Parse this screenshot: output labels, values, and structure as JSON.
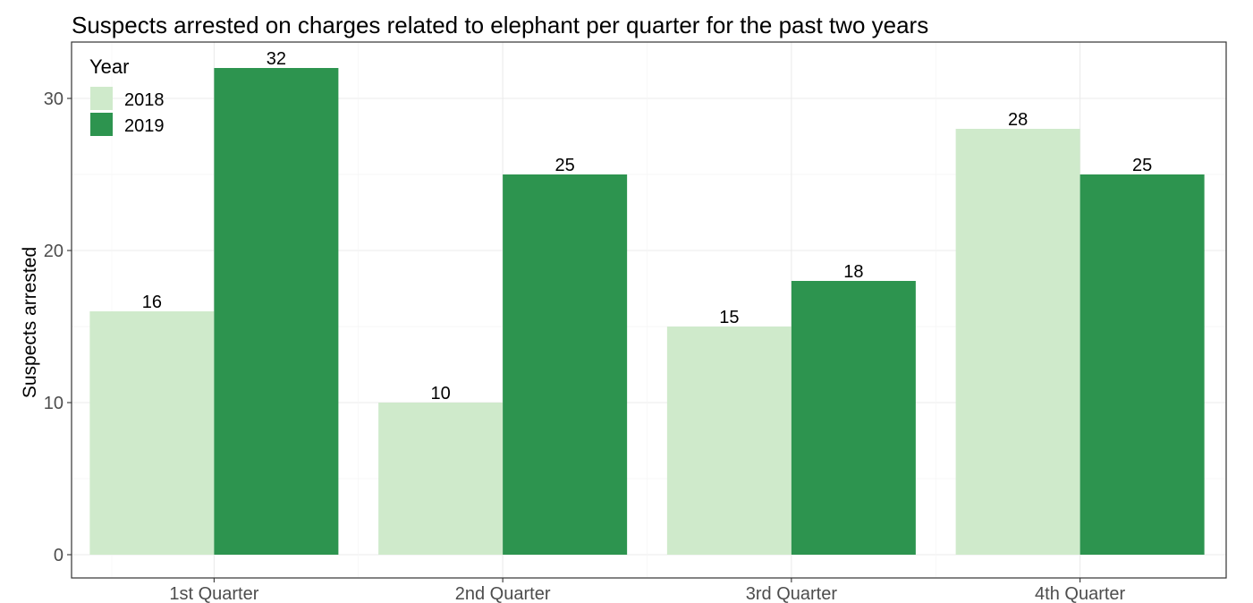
{
  "chart_data": {
    "type": "bar",
    "title": "Suspects arrested on charges related to elephant per quarter for the past two years",
    "xlabel": "",
    "ylabel": "Suspects arrested",
    "categories": [
      "1st Quarter",
      "2nd Quarter",
      "3rd Quarter",
      "4th Quarter"
    ],
    "series": [
      {
        "name": "2018",
        "values": [
          16,
          10,
          15,
          28
        ],
        "color": "#cfeacb"
      },
      {
        "name": "2019",
        "values": [
          32,
          25,
          18,
          25
        ],
        "color": "#2d944f"
      }
    ],
    "ylim": [
      0,
      32
    ],
    "yticks": [
      0,
      10,
      20,
      30
    ],
    "legend_title": "Year",
    "legend_position": "top-left",
    "grid": true
  }
}
